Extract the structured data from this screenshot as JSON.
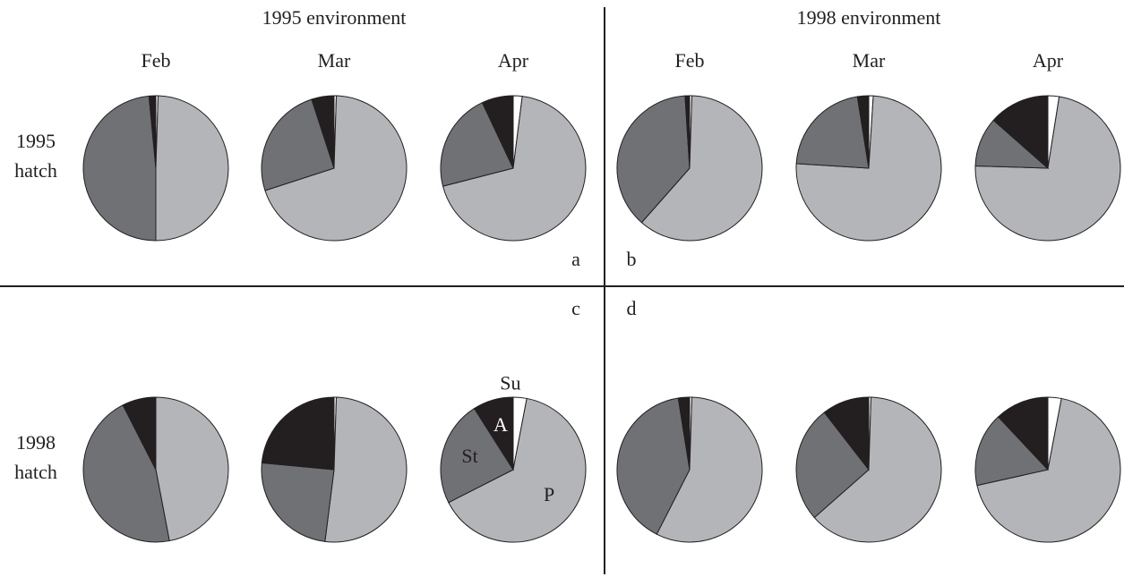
{
  "column_headers": [
    "1995 environment",
    "1998 environment"
  ],
  "row_labels": [
    [
      "1995",
      "hatch"
    ],
    [
      "1998",
      "hatch"
    ]
  ],
  "panel_letters": [
    "a",
    "b",
    "c",
    "d"
  ],
  "chart_data": [
    {
      "type": "pie",
      "title": "Feb",
      "values": [
        0.5,
        49.5,
        48.5,
        1.5
      ],
      "colors": [
        "#ffffff",
        "#b4b5b8",
        "#707175",
        "#231f20"
      ]
    },
    {
      "type": "pie",
      "title": "Mar",
      "values": [
        0.5,
        69.5,
        25,
        5
      ],
      "colors": [
        "#ffffff",
        "#b4b5b8",
        "#707175",
        "#231f20"
      ]
    },
    {
      "type": "pie",
      "title": "Apr",
      "values": [
        2,
        69,
        22,
        7
      ],
      "colors": [
        "#ffffff",
        "#b4b5b8",
        "#707175",
        "#231f20"
      ]
    },
    {
      "type": "pie",
      "title": "Feb",
      "values": [
        0.5,
        61,
        37.5,
        1
      ],
      "colors": [
        "#ffffff",
        "#b4b5b8",
        "#707175",
        "#231f20"
      ]
    },
    {
      "type": "pie",
      "title": "Mar",
      "values": [
        1,
        75,
        21.5,
        2.5
      ],
      "colors": [
        "#ffffff",
        "#b4b5b8",
        "#707175",
        "#231f20"
      ]
    },
    {
      "type": "pie",
      "title": "Apr",
      "values": [
        2.5,
        73,
        11,
        13.5
      ],
      "colors": [
        "#ffffff",
        "#b4b5b8",
        "#707175",
        "#231f20"
      ]
    },
    {
      "type": "pie",
      "values": [
        0,
        47,
        45.5,
        7.5
      ],
      "colors": [
        "#ffffff",
        "#b4b5b8",
        "#707175",
        "#231f20"
      ]
    },
    {
      "type": "pie",
      "values": [
        0.5,
        51.5,
        24.5,
        23.5
      ],
      "colors": [
        "#ffffff",
        "#b4b5b8",
        "#707175",
        "#231f20"
      ]
    },
    {
      "type": "pie",
      "categories": [
        "Su",
        "P",
        "St",
        "A"
      ],
      "values": [
        3,
        64.5,
        23.5,
        9
      ],
      "colors": [
        "#ffffff",
        "#b4b5b8",
        "#707175",
        "#231f20"
      ]
    },
    {
      "type": "pie",
      "values": [
        0.5,
        57,
        40,
        2.5
      ],
      "colors": [
        "#ffffff",
        "#b4b5b8",
        "#707175",
        "#231f20"
      ]
    },
    {
      "type": "pie",
      "values": [
        0.5,
        63,
        26,
        10.5
      ],
      "colors": [
        "#ffffff",
        "#b4b5b8",
        "#707175",
        "#231f20"
      ]
    },
    {
      "type": "pie",
      "values": [
        3,
        68.5,
        16.5,
        12
      ],
      "colors": [
        "#ffffff",
        "#b4b5b8",
        "#707175",
        "#231f20"
      ]
    }
  ]
}
